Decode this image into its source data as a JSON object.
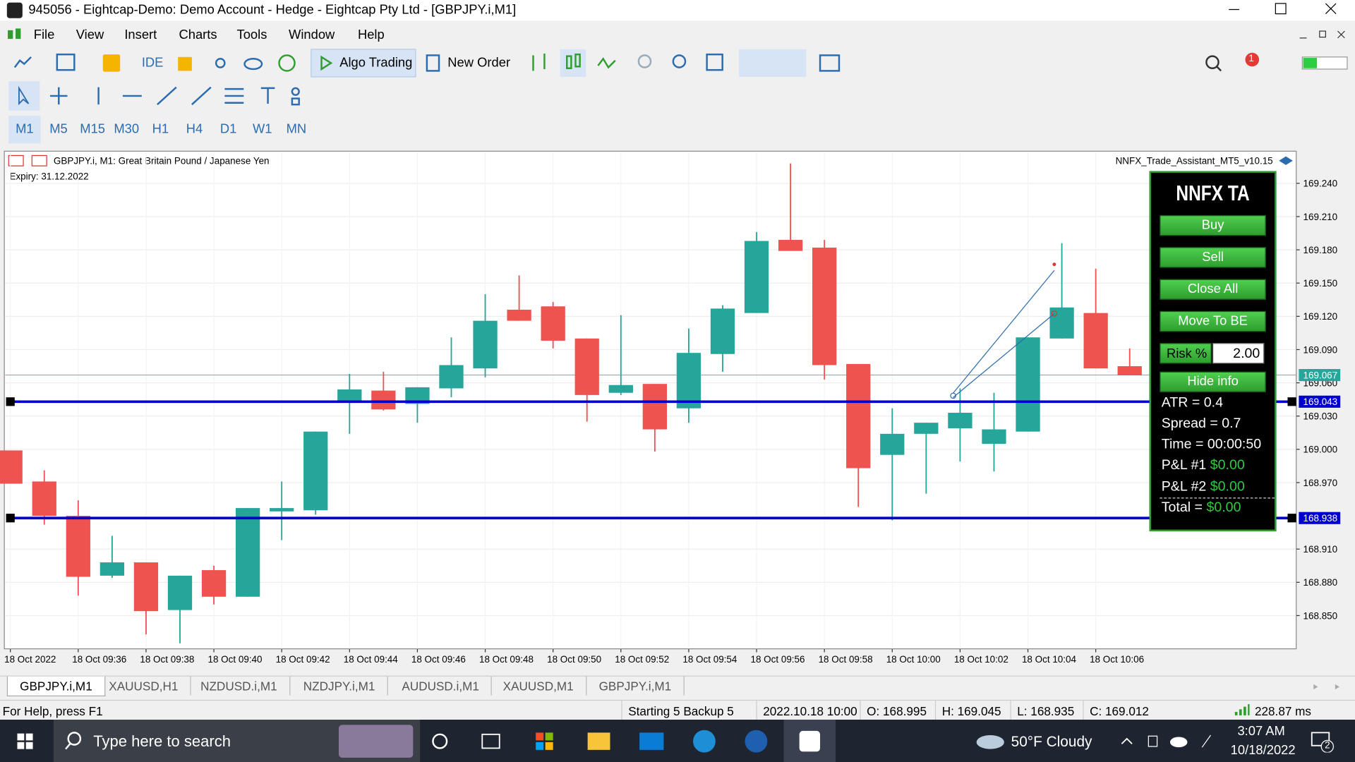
{
  "window": {
    "title": "945056 - Eightcap-Demo: Demo Account - Hedge - Eightcap Pty Ltd - [GBPJPY.i,M1]"
  },
  "menu": [
    "File",
    "View",
    "Insert",
    "Charts",
    "Tools",
    "Window",
    "Help"
  ],
  "toolbar": {
    "ide": "IDE",
    "algo_trading": "Algo Trading",
    "new_order": "New Order",
    "notifications": "1"
  },
  "timeframes": [
    "M1",
    "M5",
    "M15",
    "M30",
    "H1",
    "H4",
    "D1",
    "W1",
    "MN"
  ],
  "chart": {
    "type": "candlestick",
    "symbol_info": "GBPJPY.i, M1:  Great Britain Pound / Japanese Yen",
    "expiry": "Expiry: 31.12.2022",
    "indicator": "NNFX_Trade_Assistant_MT5_v10.15",
    "x": [
      "18 Oct 2022",
      null,
      "18 Oct 09:36",
      null,
      "18 Oct 09:38",
      null,
      "18 Oct 09:40",
      null,
      "18 Oct 09:42",
      null,
      "18 Oct 09:44",
      null,
      "18 Oct 09:46",
      null,
      "18 Oct 09:48",
      null,
      "18 Oct 09:50",
      null,
      "18 Oct 09:52",
      null,
      "18 Oct 09:54",
      null,
      "18 Oct 09:56",
      null,
      "18 Oct 09:58",
      null,
      "18 Oct 10:00",
      null,
      "18 Oct 10:02",
      null,
      "18 Oct 10:04",
      null,
      "18 Oct 10:06",
      null
    ],
    "open": [
      168.999,
      168.971,
      168.94,
      168.886,
      168.898,
      168.855,
      168.891,
      168.867,
      168.944,
      168.945,
      169.042,
      169.053,
      169.041,
      169.055,
      169.073,
      169.126,
      169.129,
      169.1,
      169.051,
      169.059,
      169.037,
      169.086,
      169.123,
      169.189,
      169.182,
      169.077,
      168.995,
      169.014,
      169.019,
      169.005,
      169.016,
      169.1,
      169.123,
      169.075
    ],
    "high": [
      168.999,
      168.981,
      168.954,
      168.922,
      168.898,
      168.886,
      168.895,
      168.947,
      168.971,
      169.016,
      169.068,
      169.07,
      169.056,
      169.101,
      169.14,
      169.157,
      169.133,
      169.1,
      169.121,
      169.059,
      169.109,
      169.13,
      169.196,
      169.258,
      169.189,
      169.077,
      169.037,
      169.024,
      169.055,
      169.051,
      169.101,
      169.186,
      169.163,
      169.091
    ],
    "low": [
      168.969,
      168.932,
      168.868,
      168.884,
      168.833,
      168.825,
      168.86,
      168.867,
      168.918,
      168.941,
      169.014,
      169.035,
      169.024,
      169.047,
      169.065,
      169.116,
      169.091,
      169.025,
      169.049,
      168.998,
      169.024,
      169.07,
      169.123,
      169.179,
      169.063,
      168.948,
      168.936,
      168.96,
      168.989,
      168.98,
      169.016,
      169.1,
      169.073,
      169.067
    ],
    "close": [
      168.969,
      168.94,
      168.885,
      168.898,
      168.854,
      168.886,
      168.867,
      168.947,
      168.947,
      169.016,
      169.054,
      169.036,
      169.056,
      169.076,
      169.116,
      169.116,
      169.098,
      169.049,
      169.058,
      169.018,
      169.087,
      169.127,
      169.188,
      169.179,
      169.076,
      168.983,
      169.014,
      169.024,
      169.033,
      169.018,
      169.101,
      169.128,
      169.073,
      169.067
    ],
    "up_color": "#26a69a",
    "down_color": "#ef5350",
    "ylim": [
      168.82,
      169.269
    ],
    "yticks": [
      {
        "value": 169.24,
        "label": "169.240"
      },
      {
        "value": 169.21,
        "label": "169.210"
      },
      {
        "value": 169.18,
        "label": "169.180"
      },
      {
        "value": 169.15,
        "label": "169.150"
      },
      {
        "value": 169.12,
        "label": "169.120"
      },
      {
        "value": 169.09,
        "label": "169.090"
      },
      {
        "value": 169.06,
        "label": "169.060"
      },
      {
        "value": 169.03,
        "label": "169.030"
      },
      {
        "value": 169,
        "label": "169.000"
      },
      {
        "value": 168.97,
        "label": "168.970"
      },
      {
        "value": 168.91,
        "label": "168.910"
      },
      {
        "value": 168.88,
        "label": "168.880"
      },
      {
        "value": 168.85,
        "label": "168.850"
      }
    ],
    "grid": true,
    "levels": [
      {
        "value": 169.043,
        "label": "169.043"
      },
      {
        "value": 168.938,
        "label": "168.938"
      }
    ],
    "level_color": "#0000cc",
    "bid": {
      "value": 169.067,
      "label": "169.067"
    },
    "bid_color": "#26a69a"
  },
  "panel": {
    "title": "NNFX TA",
    "buttons": [
      "Buy",
      "Sell",
      "Close All",
      "Move To BE"
    ],
    "risk_label": "Risk %",
    "risk_value": "2.00",
    "hide": "Hide info",
    "atr": "ATR = 0.4",
    "spread": "Spread = 0.7",
    "time": "Time = 00:00:50",
    "pnl": [
      {
        "label": "P&L #1",
        "value": "$0.00"
      },
      {
        "label": "P&L #2",
        "value": "$0.00"
      }
    ],
    "total": {
      "label": "Total =",
      "value": "$0.00"
    }
  },
  "tabs": [
    "GBPJPY.i,M1",
    "XAUUSD,H1",
    "NZDUSD.i,M1",
    "NZDJPY.i,M1",
    "AUDUSD.i,M1",
    "XAUUSD,M1",
    "GBPJPY.i,M1"
  ],
  "status": {
    "help": "For Help, press F1",
    "profile": "Starting 5 Backup 5",
    "time": "2022.10.18 10:00",
    "open": "O: 168.995",
    "high": "H: 169.045",
    "low": "L: 168.935",
    "close": "C: 169.012",
    "ping": "228.87 ms"
  },
  "taskbar": {
    "search": "Type here to search",
    "weather": "50°F  Cloudy",
    "time": "3:07 AM",
    "date": "10/18/2022",
    "badge": "2"
  }
}
